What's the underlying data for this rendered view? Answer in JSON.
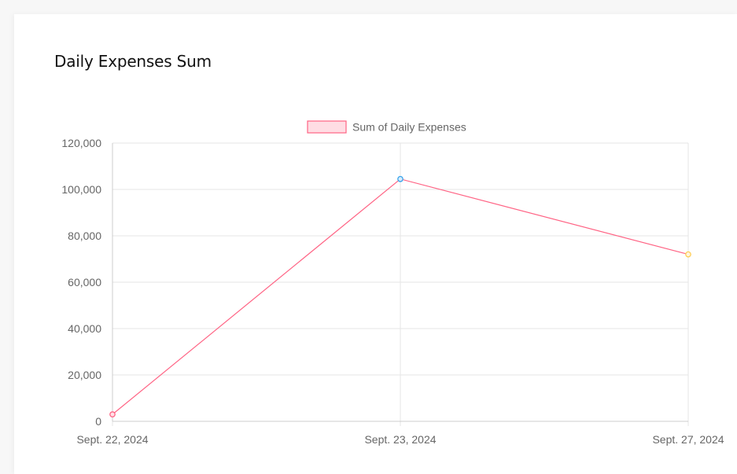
{
  "page": {
    "title": "Daily Expenses Sum"
  },
  "chart_data": {
    "type": "line",
    "categories": [
      "Sept. 22, 2024",
      "Sept. 23, 2024",
      "Sept. 27, 2024"
    ],
    "series": [
      {
        "name": "Sum of Daily Expenses",
        "values": [
          3000,
          104500,
          72000
        ],
        "line_color": "#ff6384",
        "legend_fill": "#ffdde4",
        "point_colors": [
          "#ff6384",
          "#36a2eb",
          "#ffce56"
        ],
        "point_fill_colors": [
          "#ffe0e6",
          "#d7ecfb",
          "#fff5dd"
        ]
      }
    ],
    "ylim": [
      0,
      120000
    ],
    "yticks": [
      0,
      20000,
      40000,
      60000,
      80000,
      100000,
      120000
    ],
    "ytick_labels": [
      "0",
      "20,000",
      "40,000",
      "60,000",
      "80,000",
      "100,000",
      "120,000"
    ],
    "grid": true,
    "legend_position": "top-center",
    "grid_color": "#e5e5e5",
    "axis_color": "#cccccc"
  }
}
